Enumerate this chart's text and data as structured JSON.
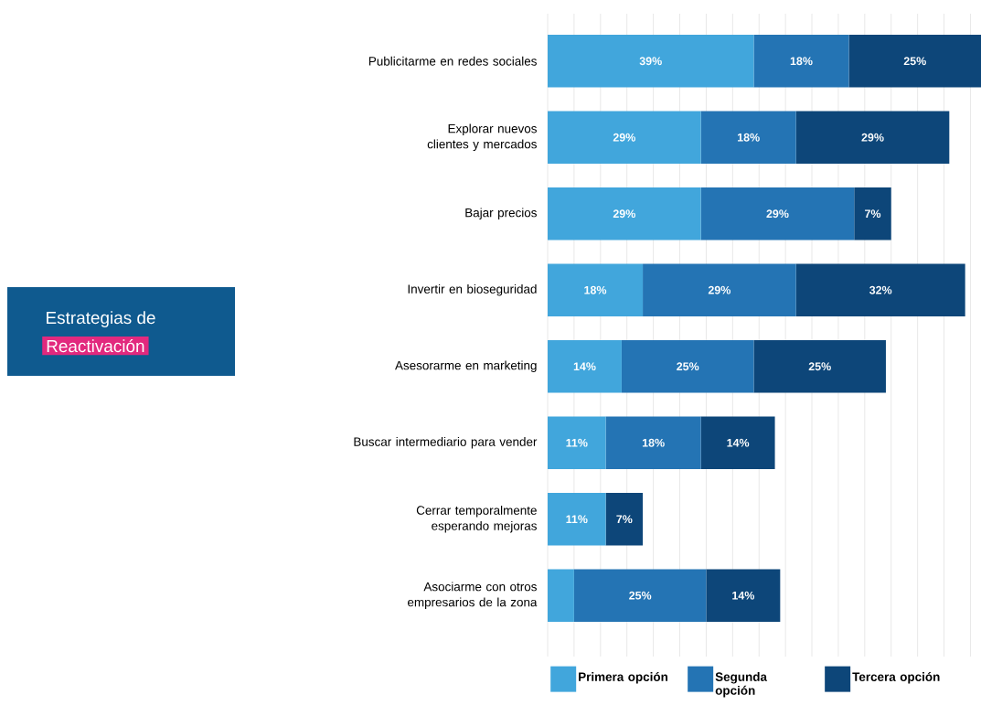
{
  "chart_data": {
    "type": "bar",
    "orientation": "horizontal",
    "stacked": true,
    "title": "Estrategias de",
    "subtitle": "Reactivación",
    "categories": [
      "Publicitarme en redes sociales",
      "Explorar nuevos clientes y mercados",
      "Bajar precios",
      "Invertir en bioseguridad",
      "Asesorarme en marketing",
      "Buscar intermediario para vender",
      "Cerrar temporalmente esperando mejoras",
      "Asociarme con otros empresarios de la zona"
    ],
    "series": [
      {
        "name": "Primera opción",
        "color": "#41a6dc",
        "values": [
          39,
          29,
          29,
          18,
          14,
          11,
          11,
          5
        ],
        "value_labels": [
          "39%",
          "29%",
          "29%",
          "18%",
          "14%",
          "11%",
          "11%",
          null
        ]
      },
      {
        "name": "Segunda opción",
        "color": "#2474b4",
        "values": [
          18,
          18,
          29,
          29,
          25,
          18,
          null,
          25
        ],
        "value_labels": [
          "18%",
          "18%",
          "29%",
          "29%",
          "25%",
          "18%",
          null,
          "25%"
        ]
      },
      {
        "name": "Tercera opción",
        "color": "#0d4679",
        "values": [
          25,
          29,
          7,
          32,
          25,
          14,
          7,
          14
        ],
        "value_labels": [
          "25%",
          "29%",
          "7%",
          "32%",
          "25%",
          "14%",
          "7%",
          "14%"
        ]
      }
    ],
    "tick_labels": "y",
    "grid": "x",
    "legend": "bottom"
  }
}
